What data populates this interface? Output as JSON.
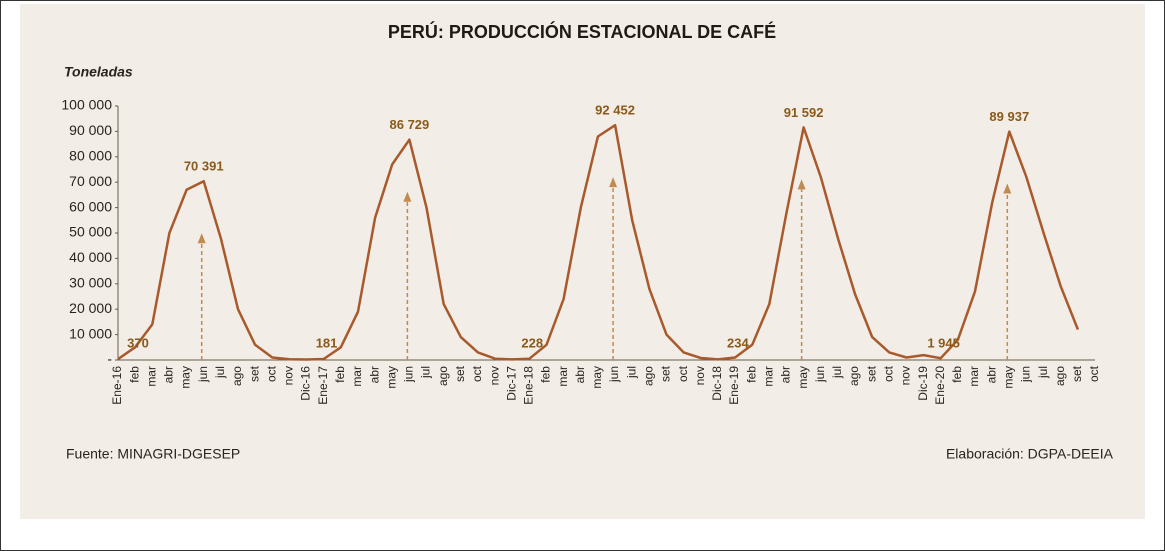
{
  "chart_data": {
    "type": "line",
    "title": "PERÚ: PRODUCCIÓN ESTACIONAL DE CAFÉ",
    "y_label": "Toneladas",
    "source": "Fuente: MINAGRI-DGESEP",
    "credit": "Elaboración: DGPA-DEEIA",
    "categories": [
      "Ene-16",
      "feb",
      "mar",
      "abr",
      "may",
      "jun",
      "jul",
      "ago",
      "set",
      "oct",
      "nov",
      "Dic-16",
      "Ene-17",
      "feb",
      "mar",
      "abr",
      "may",
      "jun",
      "jul",
      "ago",
      "set",
      "oct",
      "nov",
      "Dic-17",
      "Ene-18",
      "feb",
      "mar",
      "abr",
      "may",
      "jun",
      "jul",
      "ago",
      "set",
      "oct",
      "nov",
      "Dic-18",
      "Ene-19",
      "feb",
      "mar",
      "abr",
      "may",
      "jun",
      "jul",
      "ago",
      "set",
      "oct",
      "nov",
      "Dic-19",
      "Ene-20",
      "feb",
      "mar",
      "abr",
      "may",
      "jun",
      "jul",
      "ago",
      "set",
      "oct"
    ],
    "series": [
      {
        "name": "Producción",
        "color": "#a85a2c",
        "values": [
          370,
          5000,
          14000,
          50000,
          67000,
          70391,
          48000,
          20000,
          6000,
          1000,
          300,
          181,
          400,
          5000,
          19000,
          56000,
          77000,
          86729,
          60000,
          22000,
          9000,
          3000,
          500,
          228,
          500,
          6000,
          24000,
          60000,
          88000,
          92452,
          55000,
          28000,
          10000,
          3000,
          800,
          234,
          1000,
          6000,
          22000,
          58000,
          91592,
          72000,
          48000,
          26000,
          9000,
          3000,
          1000,
          1945,
          700,
          8000,
          27000,
          62000,
          89937,
          72000,
          50000,
          29000,
          12000,
          null
        ],
        "value_labels": [
          "370",
          null,
          null,
          null,
          null,
          "70 391",
          null,
          null,
          null,
          null,
          null,
          "181",
          null,
          null,
          null,
          null,
          null,
          "86 729",
          null,
          null,
          null,
          null,
          null,
          "228",
          null,
          null,
          null,
          null,
          null,
          "92 452",
          null,
          null,
          null,
          null,
          null,
          "234",
          null,
          null,
          null,
          null,
          "91 592",
          null,
          null,
          null,
          null,
          null,
          null,
          "1 945",
          null,
          null,
          null,
          null,
          "89 937",
          null,
          null,
          null,
          null,
          null
        ]
      }
    ],
    "ylim": [
      0,
      100000
    ],
    "yticks": [
      {
        "value": 0,
        "label": "-"
      },
      {
        "value": 10000,
        "label": "10 000"
      },
      {
        "value": 20000,
        "label": "20 000"
      },
      {
        "value": 30000,
        "label": "30 000"
      },
      {
        "value": 40000,
        "label": "40 000"
      },
      {
        "value": 50000,
        "label": "50 000"
      },
      {
        "value": 60000,
        "label": "60 000"
      },
      {
        "value": 70000,
        "label": "70 000"
      },
      {
        "value": 80000,
        "label": "80 000"
      },
      {
        "value": 90000,
        "label": "90 000"
      },
      {
        "value": 100000,
        "label": "100 000"
      }
    ],
    "grid": false
  }
}
